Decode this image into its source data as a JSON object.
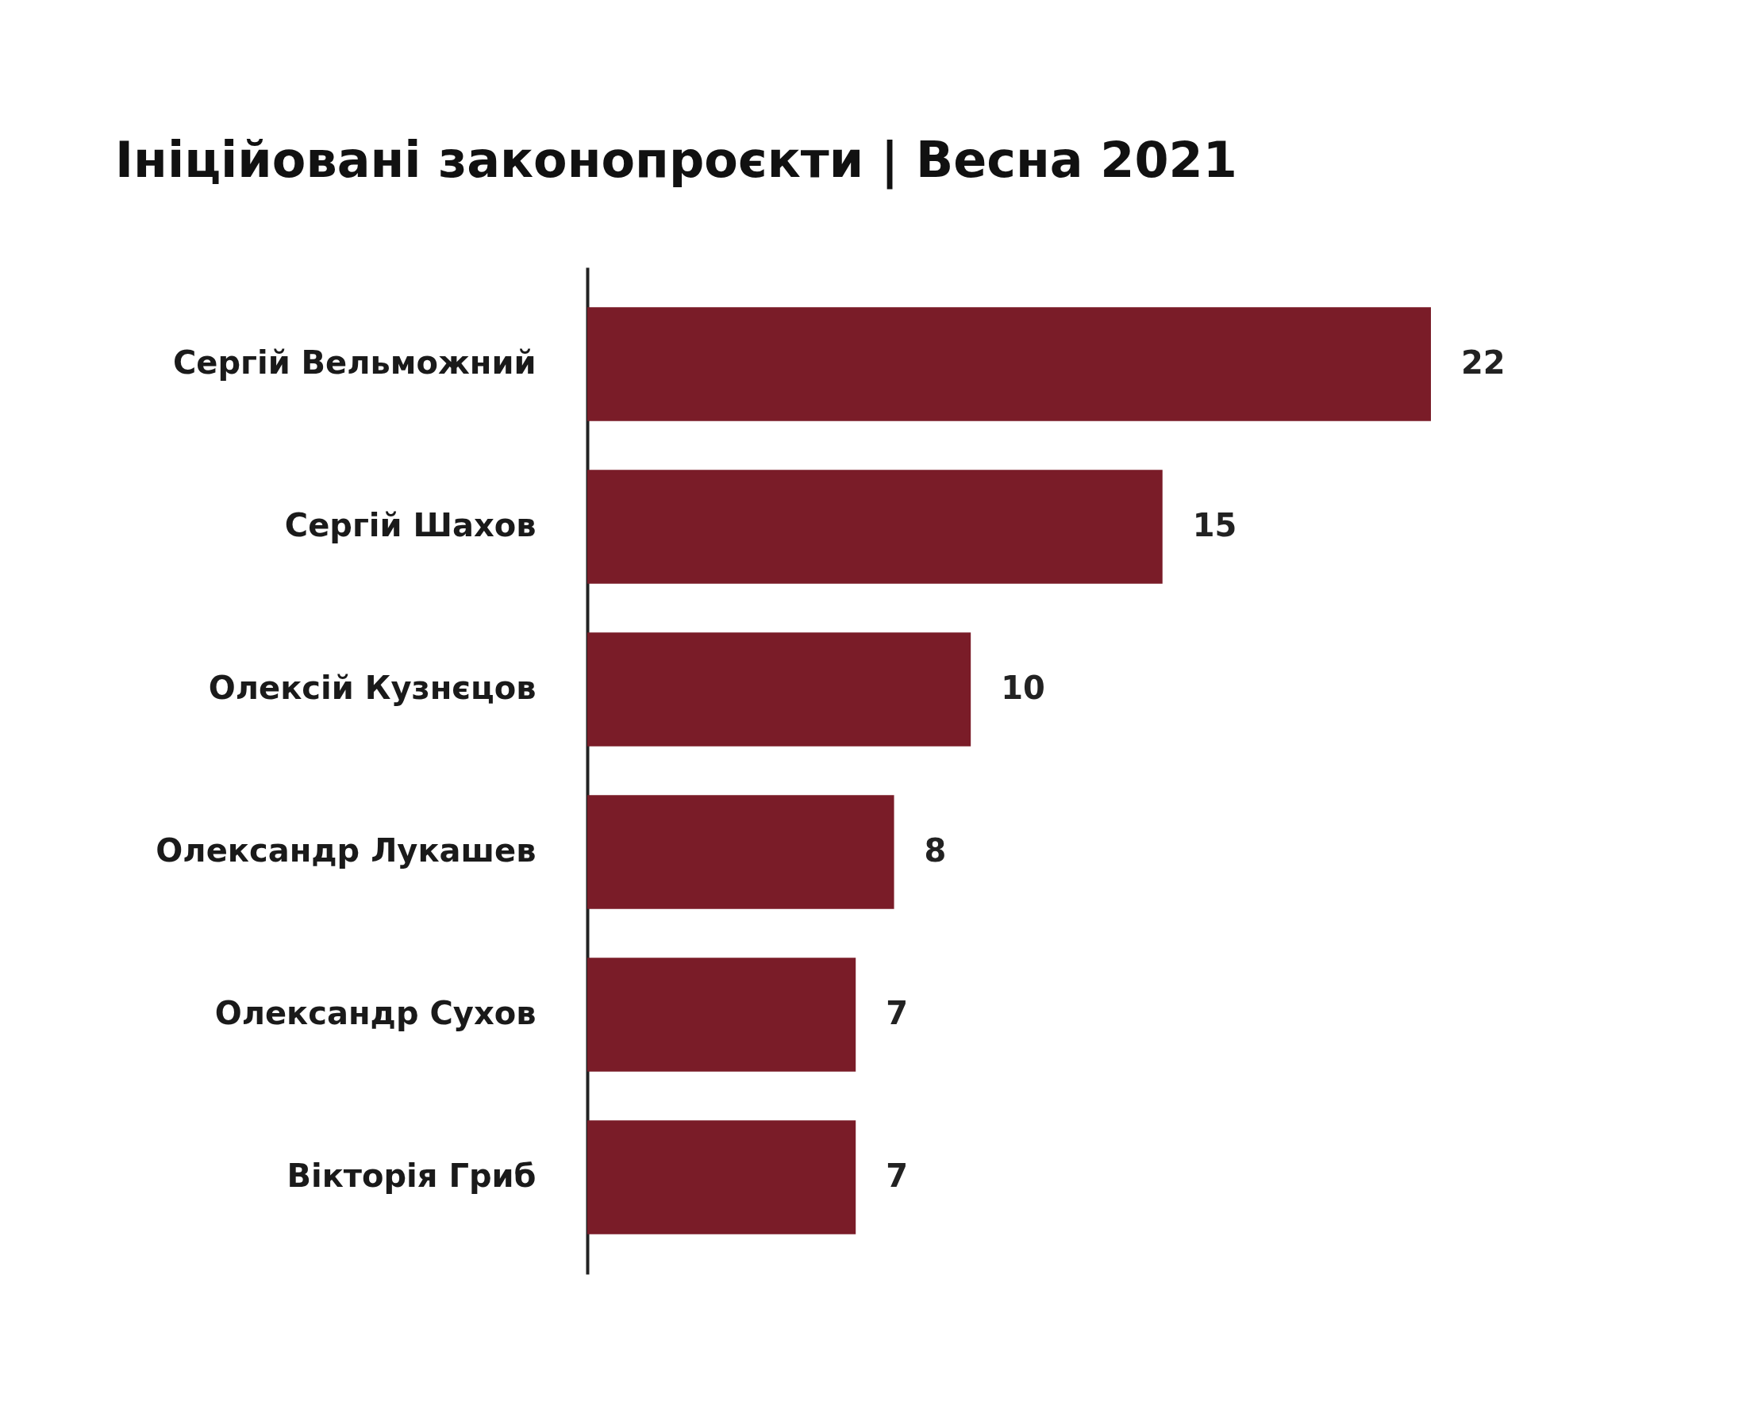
{
  "chart_data": {
    "type": "bar",
    "orientation": "horizontal",
    "data_labels": true,
    "title": "Ініційовані законопроєкти | Весна 2021",
    "categories": [
      "Сергій Вельможний",
      "Сергій Шахов",
      "Олексій Кузнєцов",
      "Олександр Лукашев",
      "Олександр Сухов",
      "Вікторія Гриб"
    ],
    "values": [
      22,
      15,
      10,
      8,
      7,
      7
    ],
    "color": "#7a1c28",
    "grid": false
  }
}
